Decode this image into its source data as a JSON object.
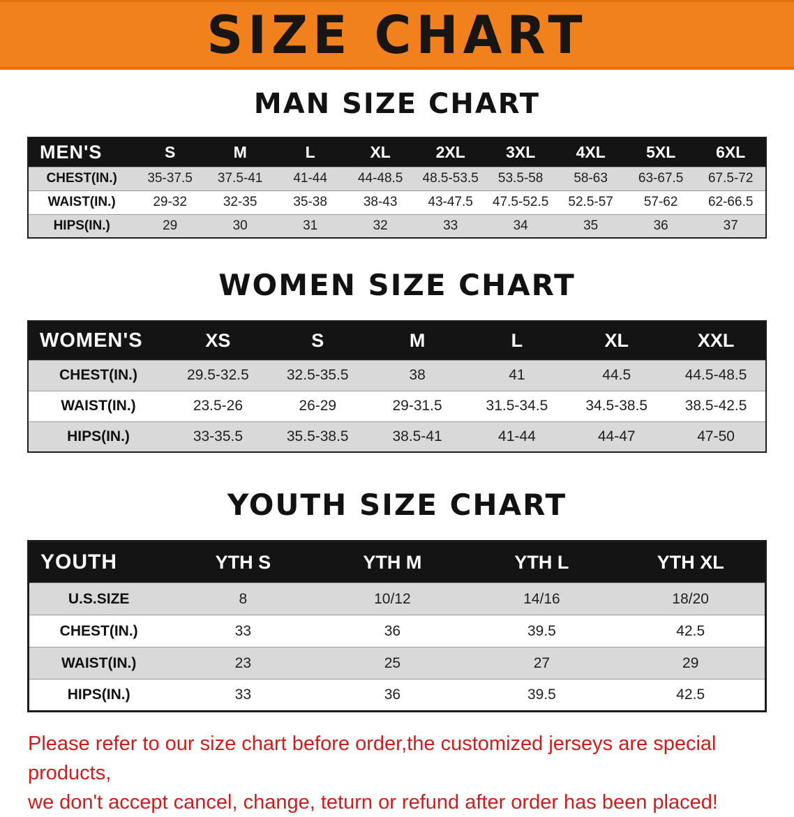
{
  "banner": {
    "title": "SIZE CHART"
  },
  "colors": {
    "banner_bg": "#f0811c",
    "table_header_bg": "#141414",
    "row_alt_bg": "#d9d9d9",
    "disclaimer_red": "#ce1d1b"
  },
  "sections": [
    {
      "id": "men",
      "heading": "MAN SIZE CHART",
      "table": {
        "header": [
          "MEN'S",
          "S",
          "M",
          "L",
          "XL",
          "2XL",
          "3XL",
          "4XL",
          "5XL",
          "6XL"
        ],
        "rows": [
          [
            "CHEST(IN.)",
            "35-37.5",
            "37.5-41",
            "41-44",
            "44-48.5",
            "48.5-53.5",
            "53.5-58",
            "58-63",
            "63-67.5",
            "67.5-72"
          ],
          [
            "WAIST(IN.)",
            "29-32",
            "32-35",
            "35-38",
            "38-43",
            "43-47.5",
            "47.5-52.5",
            "52.5-57",
            "57-62",
            "62-66.5"
          ],
          [
            "HIPS(IN.)",
            "29",
            "30",
            "31",
            "32",
            "33",
            "34",
            "35",
            "36",
            "37"
          ]
        ]
      }
    },
    {
      "id": "women",
      "heading": "WOMEN SIZE CHART",
      "table": {
        "header": [
          "WOMEN'S",
          "XS",
          "S",
          "M",
          "L",
          "XL",
          "XXL"
        ],
        "rows": [
          [
            "CHEST(IN.)",
            "29.5-32.5",
            "32.5-35.5",
            "38",
            "41",
            "44.5",
            "44.5-48.5"
          ],
          [
            "WAIST(IN.)",
            "23.5-26",
            "26-29",
            "29-31.5",
            "31.5-34.5",
            "34.5-38.5",
            "38.5-42.5"
          ],
          [
            "HIPS(IN.)",
            "33-35.5",
            "35.5-38.5",
            "38.5-41",
            "41-44",
            "44-47",
            "47-50"
          ]
        ]
      }
    },
    {
      "id": "youth",
      "heading": "YOUTH SIZE CHART",
      "table": {
        "header": [
          "YOUTH",
          "YTH S",
          "YTH M",
          "YTH L",
          "YTH XL"
        ],
        "rows": [
          [
            "U.S.SIZE",
            "8",
            "10/12",
            "14/16",
            "18/20"
          ],
          [
            "CHEST(IN.)",
            "33",
            "36",
            "39.5",
            "42.5"
          ],
          [
            "WAIST(IN.)",
            "23",
            "25",
            "27",
            "29"
          ],
          [
            "HIPS(IN.)",
            "33",
            "36",
            "39.5",
            "42.5"
          ]
        ]
      }
    }
  ],
  "disclaimer": {
    "line1": "Please refer to our size chart before order,the customized jerseys are special products,",
    "line2": "we don't accept cancel, change, teturn or refund after order has been placed!"
  }
}
